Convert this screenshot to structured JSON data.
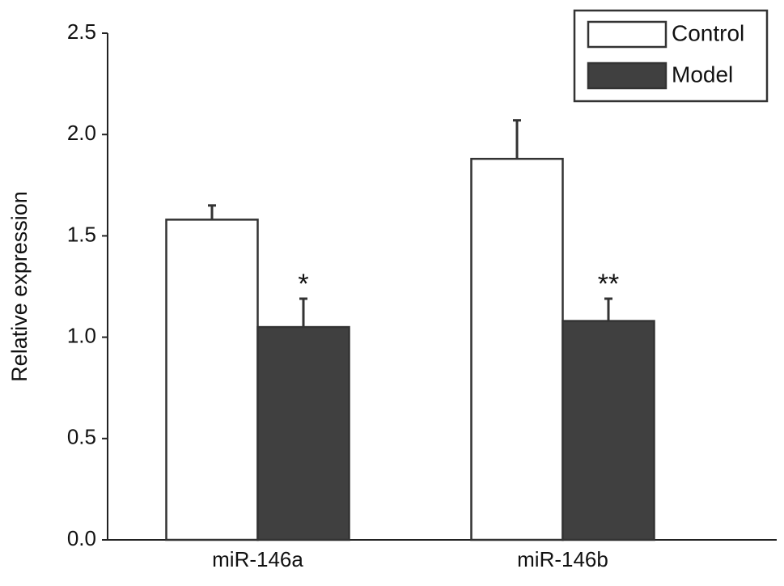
{
  "chart_data": {
    "type": "bar",
    "y_label": "Relative expression",
    "categories": [
      "miR-146a",
      "miR-146b"
    ],
    "series": [
      {
        "name": "Control",
        "color": "#ffffff",
        "values": [
          1.58,
          1.88
        ],
        "errors": [
          0.07,
          0.19
        ]
      },
      {
        "name": "Model",
        "color": "#404040",
        "values": [
          1.05,
          1.08
        ],
        "errors": [
          0.14,
          0.11
        ],
        "significance": [
          "*",
          "**"
        ]
      }
    ],
    "ylim": [
      0,
      2.5
    ],
    "yticks": [
      {
        "value": 0,
        "label": "0.0"
      },
      0.5,
      {
        "value": 1,
        "label": "1.0"
      },
      1.5,
      {
        "value": 2,
        "label": "2.0"
      },
      2.5
    ],
    "legend": "top-right"
  }
}
